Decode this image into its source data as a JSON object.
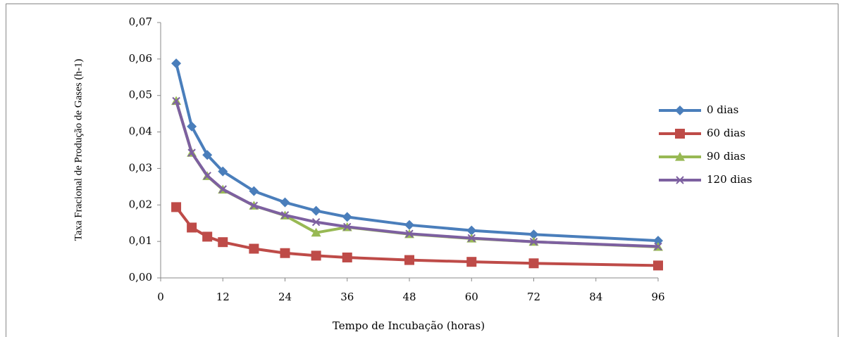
{
  "chart_data": {
    "type": "line",
    "x_label": "Tempo de Incubação (horas)",
    "y_label": "Taxa Fracional de Produção de Gases (h-1)",
    "x": [
      3,
      6,
      9,
      12,
      18,
      24,
      30,
      36,
      48,
      60,
      72,
      96
    ],
    "series": [
      {
        "name": "0 dias",
        "color": "#4a7ebb",
        "marker": "diamond",
        "values": [
          0.0588,
          0.0415,
          0.0337,
          0.0292,
          0.0238,
          0.0207,
          0.0184,
          0.0167,
          0.0145,
          0.013,
          0.0119,
          0.0102
        ]
      },
      {
        "name": "60 dias",
        "color": "#be4b48",
        "marker": "square",
        "values": [
          0.0194,
          0.0138,
          0.0113,
          0.0098,
          0.008,
          0.0068,
          0.0061,
          0.0056,
          0.0049,
          0.0044,
          0.004,
          0.0034
        ]
      },
      {
        "name": "90 dias",
        "color": "#98b954",
        "marker": "triangle",
        "values": [
          0.0485,
          0.0343,
          0.0279,
          0.0242,
          0.0198,
          0.0171,
          0.0124,
          0.0139,
          0.012,
          0.0108,
          0.0099,
          0.0085
        ]
      },
      {
        "name": "120 dias",
        "color": "#7d60a0",
        "marker": "x",
        "values": [
          0.0485,
          0.0343,
          0.028,
          0.0243,
          0.0198,
          0.0172,
          0.0153,
          0.014,
          0.0121,
          0.0109,
          0.0099,
          0.0086
        ]
      }
    ],
    "xlim": [
      0,
      96
    ],
    "xticks": [
      0,
      12,
      24,
      36,
      48,
      60,
      72,
      84,
      96
    ],
    "ylim": [
      0,
      0.07
    ],
    "yticks": [
      {
        "value": 0,
        "label": "0,00"
      },
      {
        "value": 0.01,
        "label": "0,01"
      },
      {
        "value": 0.02,
        "label": "0,02"
      },
      {
        "value": 0.03,
        "label": "0,03"
      },
      {
        "value": 0.04,
        "label": "0,04"
      },
      {
        "value": 0.05,
        "label": "0,05"
      },
      {
        "value": 0.06,
        "label": "0,06"
      },
      {
        "value": 0.07,
        "label": "0,07"
      }
    ],
    "grid": false,
    "legend": "right"
  }
}
